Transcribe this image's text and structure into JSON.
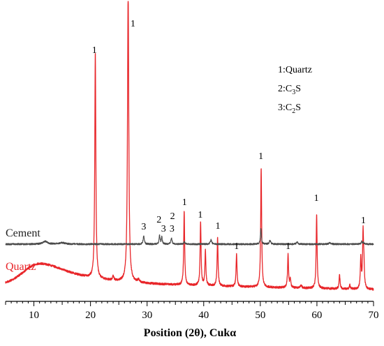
{
  "chart_data": {
    "type": "line",
    "title": "",
    "xlabel": "Position (2θ), Cukα",
    "ylabel": "",
    "xlim": [
      5,
      70
    ],
    "x_ticks": [
      10,
      20,
      30,
      40,
      50,
      60,
      70
    ],
    "grid": false,
    "y_axis_visible": false,
    "legend": {
      "placement": "top-right",
      "entries": [
        "1:Quartz",
        "2:C3S",
        "3:C2S"
      ],
      "display": [
        {
          "base": "1:Quartz",
          "sub": ""
        },
        {
          "base": "2:C",
          "sub": "3",
          "tail": "S"
        },
        {
          "base": "3:C",
          "sub": "2",
          "tail": "S"
        }
      ]
    },
    "series": [
      {
        "name": "Cement",
        "color": "#4a4a4a",
        "baseline": 350,
        "noise": 1.2,
        "peaks": [
          {
            "x": 12.0,
            "h": 4,
            "w": 0.5
          },
          {
            "x": 15.0,
            "h": 2,
            "w": 0.6
          },
          {
            "x": 29.4,
            "h": 12,
            "w": 0.12
          },
          {
            "x": 32.2,
            "h": 13,
            "w": 0.1
          },
          {
            "x": 32.6,
            "h": 10,
            "w": 0.1
          },
          {
            "x": 34.3,
            "h": 9,
            "w": 0.12
          },
          {
            "x": 36.6,
            "h": 4,
            "w": 0.1
          },
          {
            "x": 41.3,
            "h": 6,
            "w": 0.15
          },
          {
            "x": 50.1,
            "h": 22,
            "w": 0.1
          },
          {
            "x": 51.7,
            "h": 5,
            "w": 0.15
          },
          {
            "x": 56.5,
            "h": 3,
            "w": 0.15
          },
          {
            "x": 62.3,
            "h": 2,
            "w": 0.2
          },
          {
            "x": 67.9,
            "h": 4,
            "w": 0.1
          },
          {
            "x": 68.2,
            "h": 3,
            "w": 0.1
          }
        ]
      },
      {
        "name": "Quartz",
        "color": "#e8262a",
        "baseline": 408,
        "hump": {
          "x": 11.0,
          "h": 30,
          "w": 6.5
        },
        "noise": 1.5,
        "peaks": [
          {
            "x": 20.85,
            "h": 324,
            "w": 0.11
          },
          {
            "x": 24.0,
            "h": 6,
            "w": 0.15
          },
          {
            "x": 26.65,
            "h": 420,
            "w": 0.13
          },
          {
            "x": 28.5,
            "h": 4,
            "w": 0.2
          },
          {
            "x": 36.55,
            "h": 106,
            "w": 0.1
          },
          {
            "x": 39.45,
            "h": 92,
            "w": 0.1
          },
          {
            "x": 40.3,
            "h": 50,
            "w": 0.1
          },
          {
            "x": 42.45,
            "h": 70,
            "w": 0.1
          },
          {
            "x": 45.8,
            "h": 46,
            "w": 0.1
          },
          {
            "x": 50.15,
            "h": 172,
            "w": 0.1
          },
          {
            "x": 54.9,
            "h": 48,
            "w": 0.1
          },
          {
            "x": 55.3,
            "h": 12,
            "w": 0.1
          },
          {
            "x": 57.2,
            "h": 4,
            "w": 0.15
          },
          {
            "x": 59.95,
            "h": 106,
            "w": 0.1
          },
          {
            "x": 64.0,
            "h": 20,
            "w": 0.1
          },
          {
            "x": 65.8,
            "h": 6,
            "w": 0.1
          },
          {
            "x": 67.75,
            "h": 44,
            "w": 0.1
          },
          {
            "x": 68.15,
            "h": 78,
            "w": 0.1
          },
          {
            "x": 68.3,
            "h": 30,
            "w": 0.1
          }
        ]
      }
    ],
    "series_labels": [
      {
        "text": "Cement",
        "color": "#222222"
      },
      {
        "text": "Quartz",
        "color": "#e8262a"
      }
    ],
    "annotations": [
      {
        "text": "1",
        "x": 20.7,
        "y": 76
      },
      {
        "text": "1",
        "x": 27.5,
        "y": 38
      },
      {
        "text": "3",
        "x": 29.4,
        "y": 329
      },
      {
        "text": "2",
        "x": 32.1,
        "y": 319
      },
      {
        "text": "3",
        "x": 32.9,
        "y": 332
      },
      {
        "text": "2",
        "x": 34.5,
        "y": 314
      },
      {
        "text": "3",
        "x": 34.4,
        "y": 332
      },
      {
        "text": "1",
        "x": 36.6,
        "y": 294
      },
      {
        "text": "1",
        "x": 39.4,
        "y": 312
      },
      {
        "text": "1",
        "x": 42.5,
        "y": 328
      },
      {
        "text": "1",
        "x": 45.8,
        "y": 357
      },
      {
        "text": "1",
        "x": 50.1,
        "y": 228
      },
      {
        "text": "1",
        "x": 54.9,
        "y": 357
      },
      {
        "text": "1",
        "x": 59.9,
        "y": 288
      },
      {
        "text": "1",
        "x": 68.2,
        "y": 320
      }
    ]
  }
}
